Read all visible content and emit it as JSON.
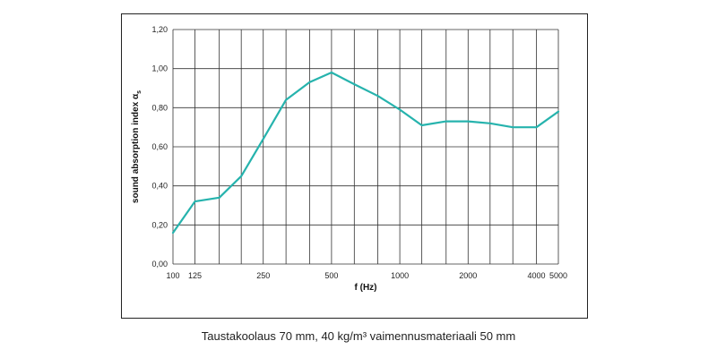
{
  "chart_data": {
    "type": "line",
    "x_scale": "log",
    "xlabel": "f (Hz)",
    "ylabel": "sound absorption index αs",
    "ylim": [
      0.0,
      1.2
    ],
    "y_ticks": [
      "0,00",
      "0,20",
      "0,40",
      "0,60",
      "0,80",
      "1,00",
      "1,20"
    ],
    "x_tick_labels": [
      {
        "x": 100,
        "label": "100"
      },
      {
        "x": 125,
        "label": "125"
      },
      {
        "x": 250,
        "label": "250"
      },
      {
        "x": 500,
        "label": "500"
      },
      {
        "x": 1000,
        "label": "1000"
      },
      {
        "x": 2000,
        "label": "2000"
      },
      {
        "x": 4000,
        "label": "4000"
      },
      {
        "x": 5000,
        "label": "5000"
      }
    ],
    "grid": true,
    "line_color": "#26b3ad",
    "series": [
      {
        "x": [
          100,
          125,
          160,
          200,
          250,
          315,
          400,
          500,
          630,
          800,
          1000,
          1250,
          1600,
          2000,
          2500,
          3150,
          4000,
          5000
        ],
        "values": [
          0.16,
          0.32,
          0.34,
          0.45,
          0.64,
          0.84,
          0.93,
          0.98,
          0.92,
          0.86,
          0.79,
          0.71,
          0.73,
          0.73,
          0.72,
          0.7,
          0.7,
          0.78
        ]
      }
    ]
  },
  "caption": "Taustakoolaus 70 mm, 40 kg/m³ vaimennusmateriaali 50 mm"
}
